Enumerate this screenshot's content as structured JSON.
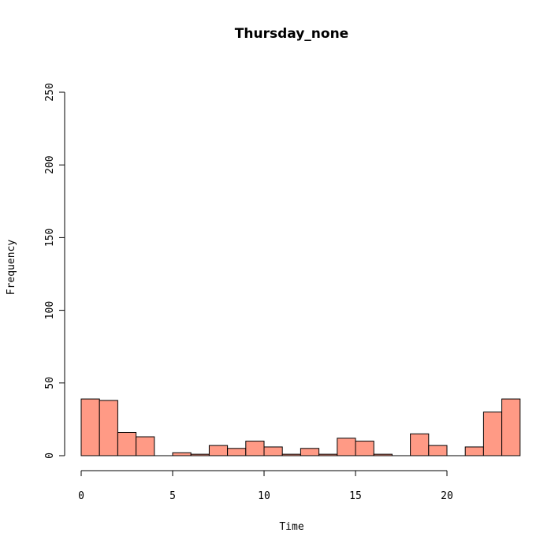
{
  "chart_data": {
    "type": "bar",
    "title": "Thursday_none",
    "xlabel": "Time",
    "ylabel": "Frequency",
    "xlim": [
      0,
      24
    ],
    "ylim": [
      0,
      250
    ],
    "x_ticks": [
      0,
      5,
      10,
      15,
      20
    ],
    "y_ticks": [
      0,
      50,
      100,
      150,
      200,
      250
    ],
    "bin_width": 1,
    "bins_start": [
      0,
      1,
      2,
      3,
      4,
      5,
      6,
      7,
      8,
      9,
      10,
      11,
      12,
      13,
      14,
      15,
      16,
      17,
      18,
      19,
      20,
      21,
      22,
      23
    ],
    "values": [
      39,
      38,
      16,
      13,
      0,
      2,
      1,
      7,
      5,
      10,
      6,
      1,
      5,
      1,
      12,
      10,
      1,
      0,
      15,
      7,
      0,
      6,
      30,
      39
    ],
    "bar_color": "#FF9A85",
    "grid": false,
    "legend": "none"
  }
}
